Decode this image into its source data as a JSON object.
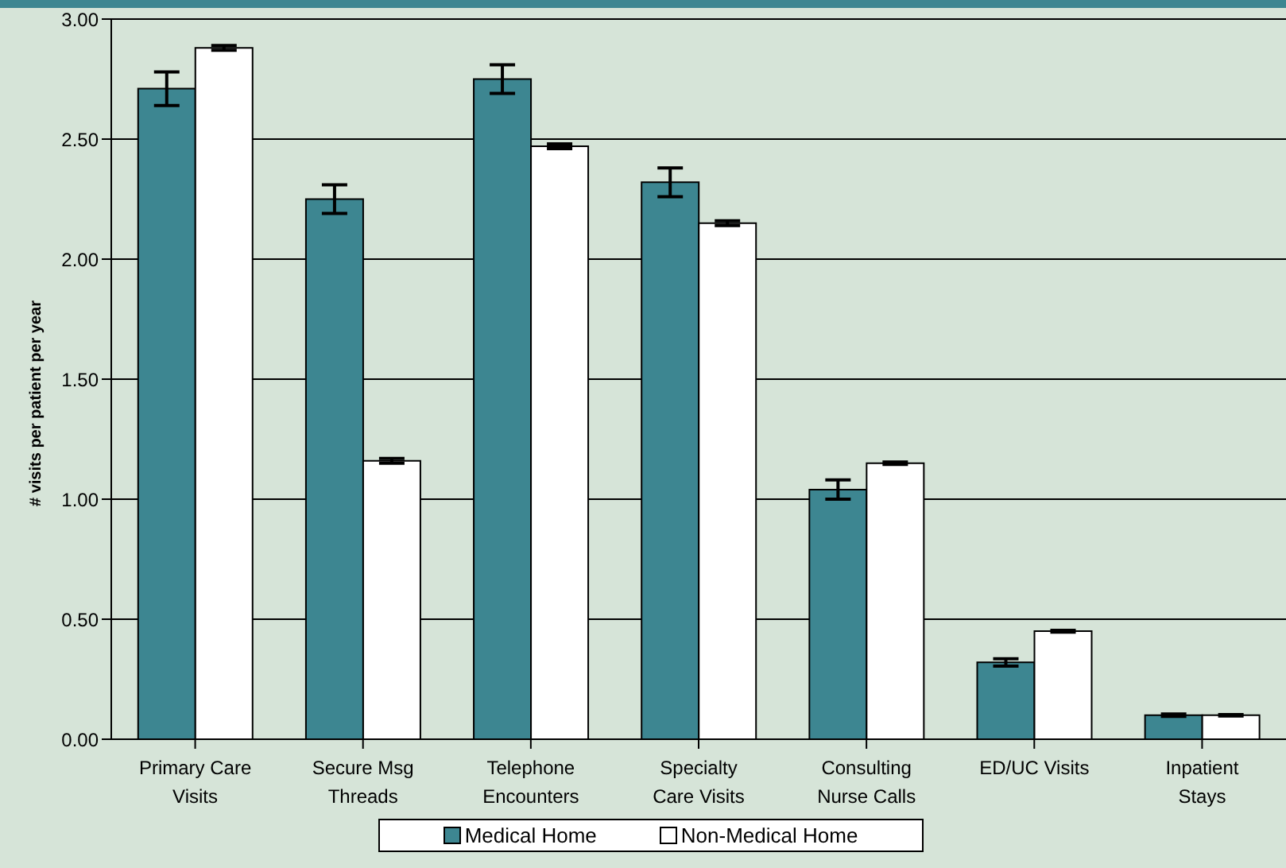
{
  "chart_data": {
    "type": "bar",
    "ylabel": "# visits per patient per year",
    "categories": [
      "Primary Care Visits",
      "Secure Msg Threads",
      "Telephone Encounters",
      "Specialty Care Visits",
      "Consulting Nurse Calls",
      "ED/UC Visits",
      "Inpatient Stays"
    ],
    "series": [
      {
        "name": "Medical Home",
        "color": "#3d8691",
        "values": [
          2.71,
          2.25,
          2.75,
          2.32,
          1.04,
          0.32,
          0.1
        ],
        "errors": [
          0.07,
          0.06,
          0.06,
          0.06,
          0.04,
          0.015,
          0.005
        ]
      },
      {
        "name": "Non-Medical Home",
        "color": "#ffffff",
        "values": [
          2.88,
          1.16,
          2.47,
          2.15,
          1.15,
          0.45,
          0.1
        ],
        "errors": [
          0.01,
          0.01,
          0.01,
          0.01,
          0.005,
          0.004,
          0.003
        ]
      }
    ],
    "ylim": [
      0,
      3
    ],
    "yticks": [
      {
        "value": 0,
        "label": "0.00"
      },
      {
        "value": 0.5,
        "label": "0.50"
      },
      {
        "value": 1,
        "label": "1.00"
      },
      {
        "value": 1.5,
        "label": "1.50"
      },
      {
        "value": 2,
        "label": "2.00"
      },
      {
        "value": 2.5,
        "label": "2.50"
      },
      {
        "value": 3,
        "label": "3.00"
      }
    ],
    "grid": "y",
    "legend": "bottom"
  }
}
